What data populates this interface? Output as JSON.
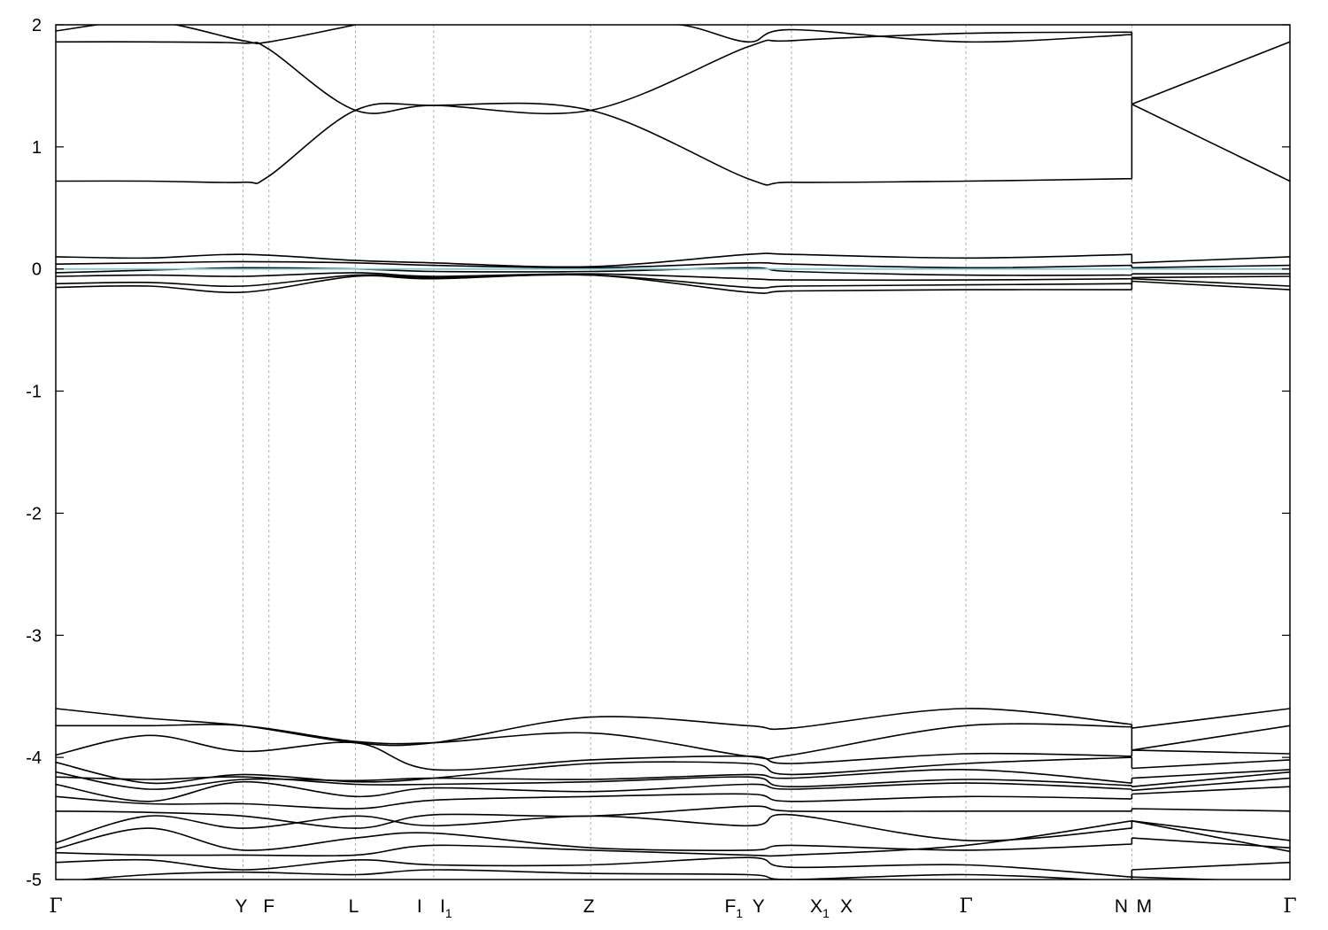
{
  "chart_data": {
    "type": "line",
    "title": "",
    "xlabel": "",
    "ylabel": "",
    "ylim": [
      -5,
      2
    ],
    "yticks": [
      -5,
      -4,
      -3,
      -2,
      -1,
      0,
      1,
      2
    ],
    "xlim": [
      0,
      1
    ],
    "grid": "dashed vertical lines at high-symmetry points",
    "colors": {
      "band": "#000000",
      "fermi": "#7ec8d0",
      "grid": "#b0b0b0"
    },
    "kpoints": [
      {
        "name": "gamma-start",
        "label": "Γ",
        "sub": "",
        "pos": 0.0
      },
      {
        "name": "Y",
        "label": "Y",
        "sub": "",
        "pos": 0.1517
      },
      {
        "name": "F",
        "label": "F",
        "sub": "",
        "pos": 0.1727
      },
      {
        "name": "L",
        "label": "L",
        "sub": "",
        "pos": 0.2428
      },
      {
        "name": "I",
        "label": "I",
        "sub": "",
        "pos": 0.3062
      },
      {
        "name": "I1",
        "label": "I",
        "sub": "1",
        "pos": 0.3062
      },
      {
        "name": "Z",
        "label": "Z",
        "sub": "",
        "pos": 0.4334
      },
      {
        "name": "F1",
        "label": "F",
        "sub": "1",
        "pos": 0.5608
      },
      {
        "name": "Y2",
        "label": "Y",
        "sub": "",
        "pos": 0.5608
      },
      {
        "name": "X1",
        "label": "X",
        "sub": "1",
        "pos": 0.5961
      },
      {
        "name": "X",
        "label": "X",
        "sub": "",
        "pos": 0.5961
      },
      {
        "name": "gamma-mid",
        "label": "Γ",
        "sub": "",
        "pos": 0.7375
      },
      {
        "name": "N",
        "label": "N",
        "sub": "",
        "pos": 0.8719
      },
      {
        "name": "M",
        "label": "M",
        "sub": "",
        "pos": 0.8719
      },
      {
        "name": "gamma-end",
        "label": "Γ",
        "sub": "",
        "pos": 1.0
      }
    ],
    "series": [
      {
        "x": [
          0,
          0.0753,
          0.1517,
          0.1727,
          0.2428,
          0.3062,
          0.4334,
          0.5608,
          0.5961,
          0.7375,
          0.8719,
          0.8719,
          1.0
        ],
        "y": [
          0.72,
          0.72,
          0.71,
          0.76,
          1.3,
          1.34,
          1.3,
          0.74,
          0.71,
          0.72,
          0.74,
          1.35,
          0.72
        ]
      },
      {
        "x": [
          0,
          0.0753,
          0.1517,
          0.1727,
          0.2428,
          0.3062,
          0.4334,
          0.5608,
          0.5961,
          0.7375,
          0.8719,
          0.8719,
          1.0
        ],
        "y": [
          1.86,
          1.86,
          1.85,
          1.8,
          1.3,
          1.34,
          1.3,
          1.82,
          1.87,
          1.93,
          1.94,
          1.35,
          1.86
        ]
      },
      {
        "x": [
          0,
          0.0753,
          0.1517,
          0.1727,
          0.2428
        ],
        "y": [
          1.95,
          2.03,
          1.87,
          1.86,
          2.0
        ]
      },
      {
        "x": [
          0.4334,
          0.5061,
          0.5608,
          0.5961,
          0.7375,
          0.8719
        ],
        "y": [
          2.02,
          2.0,
          1.86,
          1.96,
          1.86,
          1.92
        ]
      },
      {
        "x": [
          0,
          0.0753,
          0.1517,
          0.2428,
          0.3062,
          0.4334,
          0.5608,
          0.5961,
          0.7375,
          0.8719,
          0.8719,
          1.0
        ],
        "y": [
          0.1,
          0.09,
          0.12,
          0.07,
          0.05,
          0.02,
          0.12,
          0.12,
          0.09,
          0.12,
          0.05,
          0.1
        ]
      },
      {
        "x": [
          0,
          0.0753,
          0.1517,
          0.2428,
          0.3062,
          0.4334,
          0.5608,
          0.5961,
          0.7375,
          0.8719,
          0.8719,
          1.0
        ],
        "y": [
          0.04,
          0.05,
          0.06,
          0.05,
          0.03,
          0.01,
          0.05,
          0.04,
          0.01,
          0.03,
          0.01,
          0.03
        ]
      },
      {
        "x": [
          0,
          0.0753,
          0.1517,
          0.2428,
          0.3062,
          0.4334,
          0.5608,
          0.5961,
          0.7375,
          0.8719,
          0.8719,
          1.0
        ],
        "y": [
          -0.03,
          -0.01,
          0.01,
          0.0,
          -0.02,
          -0.02,
          0.01,
          -0.02,
          -0.05,
          -0.05,
          -0.04,
          -0.04
        ]
      },
      {
        "x": [
          0,
          0.0753,
          0.1517,
          0.2428,
          0.3062,
          0.4334,
          0.5608,
          0.5961,
          0.7375,
          0.8719,
          0.8719,
          1.0
        ],
        "y": [
          -0.06,
          -0.05,
          -0.06,
          -0.03,
          -0.06,
          -0.04,
          -0.08,
          -0.09,
          -0.09,
          -0.08,
          -0.07,
          -0.06
        ]
      },
      {
        "x": [
          0,
          0.0753,
          0.1517,
          0.2428,
          0.3062,
          0.4334,
          0.5608,
          0.5961,
          0.7375,
          0.8719,
          0.8719,
          1.0
        ],
        "y": [
          -0.12,
          -0.11,
          -0.14,
          -0.05,
          -0.07,
          -0.05,
          -0.15,
          -0.14,
          -0.13,
          -0.12,
          -0.08,
          -0.14
        ]
      },
      {
        "x": [
          0,
          0.0753,
          0.1517,
          0.2428,
          0.3062,
          0.4334,
          0.5608,
          0.5961,
          0.7375,
          0.8719,
          0.8719,
          1.0
        ],
        "y": [
          -0.15,
          -0.14,
          -0.19,
          -0.06,
          -0.08,
          -0.05,
          -0.19,
          -0.18,
          -0.17,
          -0.17,
          -0.1,
          -0.17
        ]
      },
      {
        "x": [
          0,
          0.0753,
          0.1517,
          0.2428,
          0.3062,
          0.4334,
          0.5608,
          0.5961,
          0.7375,
          0.8719,
          0.8719,
          1.0
        ],
        "y": [
          -3.6,
          -3.68,
          -3.74,
          -3.88,
          -3.88,
          -3.67,
          -3.74,
          -3.76,
          -3.6,
          -3.73,
          -3.76,
          -3.6
        ]
      },
      {
        "x": [
          0,
          0.0753,
          0.1517,
          0.2428,
          0.3062,
          0.4334,
          0.5608,
          0.5961,
          0.7375,
          0.8719,
          0.8719,
          1.0
        ],
        "y": [
          -3.74,
          -3.74,
          -3.74,
          -3.87,
          -3.88,
          -3.8,
          -3.99,
          -3.98,
          -3.74,
          -3.75,
          -3.94,
          -3.74
        ]
      },
      {
        "x": [
          0,
          0.0753,
          0.1517,
          0.2428,
          0.3062,
          0.4334,
          0.5608,
          0.5961,
          0.7375,
          0.8719,
          0.8719,
          1.0
        ],
        "y": [
          -3.98,
          -3.82,
          -3.95,
          -3.88,
          -4.1,
          -4.02,
          -3.99,
          -4.05,
          -3.97,
          -3.99,
          -3.94,
          -3.97
        ]
      },
      {
        "x": [
          0,
          0.0753,
          0.1517,
          0.2428,
          0.3062,
          0.4334,
          0.5608,
          0.5961,
          0.7375,
          0.8719,
          0.8719,
          1.0
        ],
        "y": [
          -4.04,
          -4.21,
          -4.14,
          -4.2,
          -4.17,
          -4.05,
          -4.05,
          -4.14,
          -4.05,
          -4.0,
          -4.09,
          -4.02
        ]
      },
      {
        "x": [
          0,
          0.0753,
          0.1517,
          0.2428,
          0.3062,
          0.4334,
          0.5608,
          0.5961,
          0.7375,
          0.8719,
          0.8719,
          1.0
        ],
        "y": [
          -4.12,
          -4.26,
          -4.18,
          -4.19,
          -4.17,
          -4.18,
          -4.14,
          -4.17,
          -4.1,
          -4.21,
          -4.17,
          -4.1
        ]
      },
      {
        "x": [
          0,
          0.0753,
          0.1517,
          0.2428,
          0.3062,
          0.4334,
          0.5608,
          0.5961,
          0.7375,
          0.8719,
          0.8719,
          1.0
        ],
        "y": [
          -4.16,
          -4.18,
          -4.16,
          -4.22,
          -4.22,
          -4.2,
          -4.16,
          -4.24,
          -4.18,
          -4.23,
          -4.24,
          -4.12
        ]
      },
      {
        "x": [
          0,
          0.0753,
          0.1517,
          0.2428,
          0.3062,
          0.4334,
          0.5608,
          0.5961,
          0.7375,
          0.8719,
          0.8719,
          1.0
        ],
        "y": [
          -4.22,
          -4.36,
          -4.2,
          -4.32,
          -4.25,
          -4.28,
          -4.22,
          -4.26,
          -4.21,
          -4.26,
          -4.27,
          -4.17
        ]
      },
      {
        "x": [
          0,
          0.0753,
          0.1517,
          0.2428,
          0.3062,
          0.4334,
          0.5608,
          0.5961,
          0.7375,
          0.8719,
          0.8719,
          1.0
        ],
        "y": [
          -4.32,
          -4.38,
          -4.38,
          -4.42,
          -4.35,
          -4.32,
          -4.3,
          -4.36,
          -4.32,
          -4.34,
          -4.3,
          -4.24
        ]
      },
      {
        "x": [
          0,
          0.0753,
          0.1517,
          0.2428,
          0.3062,
          0.4334,
          0.5608,
          0.5961,
          0.7375,
          0.8719,
          0.8719,
          1.0
        ],
        "y": [
          -4.44,
          -4.45,
          -4.48,
          -4.58,
          -4.47,
          -4.48,
          -4.4,
          -4.44,
          -4.44,
          -4.44,
          -4.42,
          -4.44
        ]
      },
      {
        "x": [
          0,
          0.0753,
          0.1517,
          0.2428,
          0.3062,
          0.4334,
          0.5608,
          0.5961,
          0.7375,
          0.8719,
          0.8719,
          1.0
        ],
        "y": [
          -4.7,
          -4.48,
          -4.58,
          -4.48,
          -4.56,
          -4.48,
          -4.56,
          -4.47,
          -4.68,
          -4.58,
          -4.52,
          -4.68
        ]
      },
      {
        "x": [
          0,
          0.0753,
          0.1517,
          0.2428,
          0.3062,
          0.4334,
          0.5608,
          0.5961,
          0.7375,
          0.8719,
          0.8719,
          1.0
        ],
        "y": [
          -4.75,
          -4.58,
          -4.76,
          -4.66,
          -4.62,
          -4.74,
          -4.76,
          -4.72,
          -4.76,
          -4.71,
          -4.66,
          -4.74
        ]
      },
      {
        "x": [
          0,
          0.0753,
          0.1517,
          0.2428,
          0.3062,
          0.4334,
          0.5608,
          0.5961,
          0.7375,
          0.8719,
          0.8719,
          1.0
        ],
        "y": [
          -4.78,
          -4.8,
          -4.8,
          -4.8,
          -4.72,
          -4.76,
          -4.8,
          -4.8,
          -4.72,
          -4.52,
          -4.52,
          -4.77
        ]
      },
      {
        "x": [
          0,
          0.0753,
          0.1517,
          0.2428,
          0.3062,
          0.4334,
          0.5608,
          0.5961,
          0.7375,
          0.8719,
          0.8719,
          1.0
        ],
        "y": [
          -4.86,
          -4.84,
          -4.92,
          -4.84,
          -4.88,
          -4.88,
          -4.82,
          -4.9,
          -4.88,
          -4.98,
          -4.92,
          -4.86
        ]
      },
      {
        "x": [
          0,
          0.0753,
          0.1517,
          0.2428,
          0.3062,
          0.4334,
          0.5608,
          0.5961,
          0.7375,
          0.8719,
          0.8719,
          1.0
        ],
        "y": [
          -5.02,
          -4.96,
          -4.94,
          -4.96,
          -4.92,
          -4.95,
          -4.96,
          -5.0,
          -4.96,
          -5.02,
          -4.98,
          -5.02
        ]
      }
    ],
    "fermi_level": 0
  }
}
